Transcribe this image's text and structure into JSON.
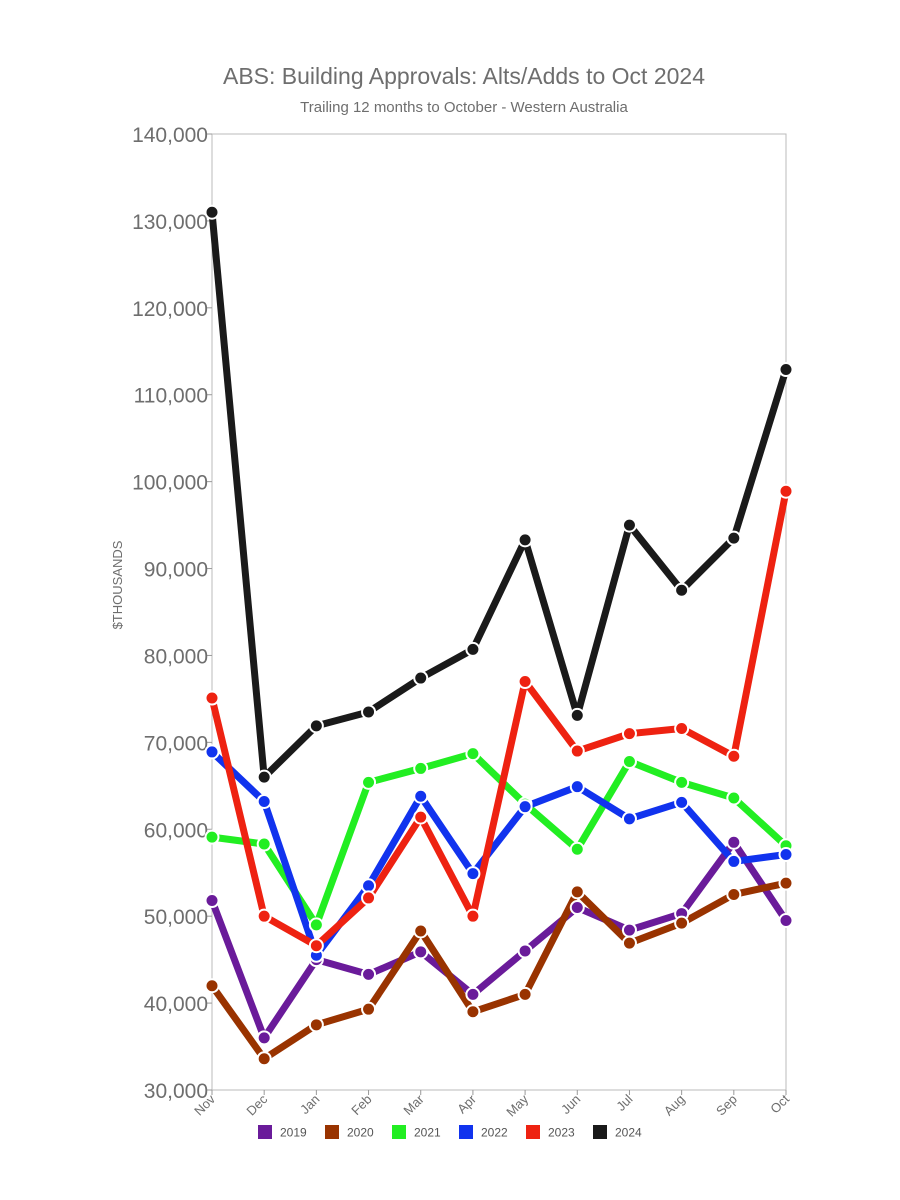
{
  "chart_data": {
    "type": "line",
    "title": "ABS: Building Approvals: Alts/Adds to Oct 2024",
    "subtitle": "Trailing 12 months to October - Western Australia",
    "ylabel": "$THOUSANDS",
    "xlabel": "",
    "categories": [
      "Nov",
      "Dec",
      "Jan",
      "Feb",
      "Mar",
      "Apr",
      "May",
      "Jun",
      "Jul",
      "Aug",
      "Sep",
      "Oct"
    ],
    "ylim": [
      30000,
      140000
    ],
    "yticks": [
      30000,
      40000,
      50000,
      60000,
      70000,
      80000,
      90000,
      100000,
      110000,
      120000,
      130000,
      140000
    ],
    "ytick_labels": [
      "30,000",
      "40,000",
      "50,000",
      "60,000",
      "70,000",
      "80,000",
      "90,000",
      "100,000",
      "110,000",
      "120,000",
      "130,000",
      "140,000"
    ],
    "grid": false,
    "legend_position": "bottom",
    "series": [
      {
        "name": "2019",
        "color": "#6a1b9a",
        "values": [
          51800,
          36000,
          45000,
          43300,
          45900,
          41000,
          46000,
          51000,
          48400,
          50300,
          58500,
          49500
        ]
      },
      {
        "name": "2020",
        "color": "#993300",
        "values": [
          42000,
          33600,
          37500,
          39300,
          48300,
          39000,
          41000,
          52800,
          46900,
          49200,
          52500,
          53800
        ]
      },
      {
        "name": "2021",
        "color": "#22ee22",
        "values": [
          59100,
          58300,
          49000,
          65400,
          67000,
          68700,
          62900,
          57700,
          67800,
          65400,
          63600,
          58100
        ]
      },
      {
        "name": "2022",
        "color": "#1133ee",
        "values": [
          68900,
          63200,
          45500,
          53500,
          63800,
          54900,
          62600,
          64900,
          61200,
          63100,
          56300,
          57100
        ]
      },
      {
        "name": "2023",
        "color": "#ee2211",
        "values": [
          75100,
          50000,
          46600,
          52100,
          61400,
          50000,
          77000,
          69000,
          71000,
          71600,
          68400,
          98900
        ]
      },
      {
        "name": "2024",
        "color": "#1a1a1a",
        "values": [
          131000,
          66000,
          71900,
          73500,
          77400,
          80700,
          93300,
          73100,
          95000,
          87500,
          93500,
          112900
        ]
      }
    ]
  }
}
